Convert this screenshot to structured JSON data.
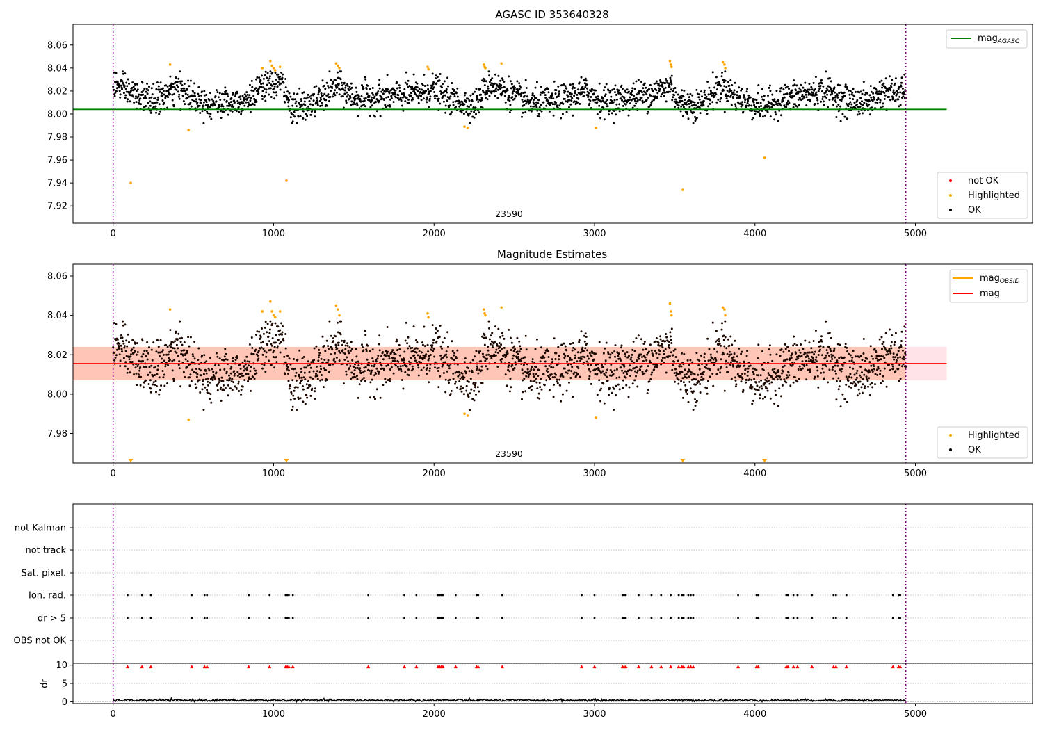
{
  "chart_data": [
    {
      "type": "scatter",
      "title": "AGASC ID 353640328",
      "xlim": [
        -250,
        5730
      ],
      "ylim": [
        7.905,
        8.078
      ],
      "xticks": [
        0,
        1000,
        2000,
        3000,
        4000,
        5000
      ],
      "xtick_labels": [
        "0",
        "1000",
        "2000",
        "3000",
        "4000",
        "5000"
      ],
      "yticks": [
        7.92,
        7.94,
        7.96,
        7.98,
        8.0,
        8.02,
        8.04,
        8.06
      ],
      "ytick_labels": [
        "7.92",
        "7.94",
        "7.96",
        "7.98",
        "8.00",
        "8.02",
        "8.04",
        "8.06"
      ],
      "obsid_label": "23590",
      "obsid_label_x": 2470,
      "obs_boundaries_x": [
        0,
        4940
      ],
      "reference_line": {
        "name": "mag",
        "subscript": "AGASC",
        "y": 8.004,
        "x_range": [
          -250,
          5195
        ],
        "color": "#008000"
      },
      "legend_top": [
        {
          "label": "mag",
          "subscript": "AGASC",
          "color": "#008000",
          "kind": "line"
        }
      ],
      "legend_bottom": [
        {
          "label": "not OK",
          "color": "#ff0000",
          "kind": "dot"
        },
        {
          "label": "Highlighted",
          "color": "#ffa500",
          "kind": "dot"
        },
        {
          "label": "OK",
          "color": "#000000",
          "kind": "dot"
        }
      ],
      "series": [
        {
          "name": "OK",
          "color": "#000000",
          "profile_x": [
            0,
            120,
            250,
            400,
            500,
            600,
            700,
            850,
            950,
            1050,
            1100,
            1200,
            1300,
            1400,
            1500,
            1700,
            1900,
            2000,
            2100,
            2250,
            2350,
            2500,
            2600,
            2800,
            2950,
            3050,
            3200,
            3350,
            3480,
            3520,
            3650,
            3800,
            3900,
            4050,
            4150,
            4300,
            4450,
            4550,
            4700,
            4800,
            4940
          ],
          "profile_y": [
            8.026,
            8.018,
            8.011,
            8.022,
            8.015,
            8.009,
            8.01,
            8.014,
            8.024,
            8.028,
            8.007,
            8.006,
            8.014,
            8.025,
            8.014,
            8.015,
            8.018,
            8.022,
            8.013,
            8.007,
            8.027,
            8.016,
            8.009,
            8.012,
            8.02,
            8.011,
            8.014,
            8.018,
            8.025,
            8.01,
            8.008,
            8.025,
            8.013,
            8.006,
            8.012,
            8.017,
            8.02,
            8.012,
            8.01,
            8.02,
            8.018
          ],
          "count": 2400,
          "scatter_sigma": 0.0065
        },
        {
          "name": "Highlighted",
          "color": "#ffa500",
          "x": [
            110,
            355,
            470,
            930,
            980,
            990,
            1000,
            1010,
            1040,
            1080,
            1390,
            1400,
            1410,
            1960,
            1965,
            2190,
            2210,
            2310,
            2315,
            2320,
            2420,
            3010,
            3470,
            3475,
            3480,
            3550,
            3800,
            3810,
            3815,
            4060
          ],
          "y": [
            7.94,
            8.043,
            7.986,
            8.04,
            8.046,
            8.042,
            8.04,
            8.038,
            8.041,
            7.942,
            8.044,
            8.042,
            8.04,
            8.041,
            8.039,
            7.989,
            7.988,
            8.043,
            8.041,
            8.04,
            8.044,
            7.988,
            8.046,
            8.043,
            8.041,
            7.934,
            8.045,
            8.043,
            8.04,
            7.962
          ]
        }
      ]
    },
    {
      "type": "scatter",
      "title": "Magnitude Estimates",
      "xlim": [
        -250,
        5730
      ],
      "ylim": [
        7.965,
        8.066
      ],
      "xticks": [
        0,
        1000,
        2000,
        3000,
        4000,
        5000
      ],
      "xtick_labels": [
        "0",
        "1000",
        "2000",
        "3000",
        "4000",
        "5000"
      ],
      "yticks": [
        7.98,
        8.0,
        8.02,
        8.04,
        8.06
      ],
      "ytick_labels": [
        "7.98",
        "8.00",
        "8.02",
        "8.04",
        "8.06"
      ],
      "obsid_label": "23590",
      "obsid_label_x": 2470,
      "obs_boundaries_x": [
        0,
        4940
      ],
      "mean_line": {
        "name": "mag",
        "y": 8.0155,
        "x_range": [
          -250,
          5195
        ],
        "color": "#ff0000"
      },
      "bands": [
        {
          "y0": 8.007,
          "y1": 8.024,
          "x_range": [
            -250,
            5195
          ],
          "color": "#ffc0cb"
        },
        {
          "y0": 8.007,
          "y1": 8.024,
          "x_range": [
            -250,
            4940
          ],
          "color": "#ffa07a"
        }
      ],
      "off_scale_markers_x": [
        110,
        1080,
        3550,
        4060
      ],
      "legend_top": [
        {
          "label": "mag",
          "subscript": "OBSID",
          "color": "#ffa500",
          "kind": "line"
        },
        {
          "label": "mag",
          "color": "#ff0000",
          "kind": "line"
        }
      ],
      "legend_bottom": [
        {
          "label": "Highlighted",
          "color": "#ffa500",
          "kind": "dot"
        },
        {
          "label": "OK",
          "color": "#000000",
          "kind": "dot"
        }
      ],
      "series": [
        {
          "name": "OK",
          "color": "#000000",
          "shares_profile_with_chart": 0
        },
        {
          "name": "Highlighted",
          "color": "#ffa500",
          "x": [
            355,
            470,
            930,
            980,
            990,
            1000,
            1010,
            1040,
            1390,
            1400,
            1410,
            1960,
            1965,
            2190,
            2210,
            2310,
            2315,
            2320,
            2420,
            3010,
            3470,
            3475,
            3480,
            3800,
            3810,
            3815
          ],
          "y": [
            8.043,
            7.987,
            8.042,
            8.047,
            8.042,
            8.04,
            8.039,
            8.042,
            8.045,
            8.043,
            8.04,
            8.041,
            8.039,
            7.99,
            7.989,
            8.043,
            8.041,
            8.04,
            8.044,
            7.988,
            8.046,
            8.042,
            8.04,
            8.044,
            8.043,
            8.04
          ]
        }
      ]
    },
    {
      "type": "scatter",
      "xlim": [
        -250,
        5730
      ],
      "xticks": [
        0,
        1000,
        2000,
        3000,
        4000,
        5000
      ],
      "xtick_labels": [
        "0",
        "1000",
        "2000",
        "3000",
        "4000",
        "5000"
      ],
      "categories": [
        "not Kalman",
        "not track",
        "Sat. pixel.",
        "Ion. rad.",
        "dr > 5",
        "OBS not OK"
      ],
      "obs_boundaries_x": [
        0,
        4940
      ],
      "flag_events_x": [
        90,
        180,
        235,
        490,
        570,
        585,
        845,
        975,
        1075,
        1085,
        1095,
        1120,
        1590,
        1815,
        1890,
        2025,
        2035,
        2045,
        2055,
        2135,
        2265,
        2275,
        2425,
        2920,
        3000,
        3175,
        3185,
        3195,
        3275,
        3355,
        3415,
        3475,
        3525,
        3545,
        3555,
        3585,
        3600,
        3615,
        3895,
        4010,
        4020,
        4195,
        4205,
        4240,
        4265,
        4355,
        4490,
        4505,
        4570,
        4860,
        4895,
        4905
      ],
      "flagged_categories": [
        "Ion. rad.",
        "dr > 5"
      ],
      "dr_axis": {
        "ylabel": "dr",
        "ylim": [
          -0.5,
          10.5
        ],
        "yticks": [
          0,
          5,
          10
        ],
        "ytick_labels": [
          "0",
          "5",
          "10"
        ],
        "dr_baseline": 0.4,
        "dr_noise": 0.15,
        "clipped_marker_y": 10,
        "clipped_marker_color": "#ff0000"
      }
    }
  ]
}
